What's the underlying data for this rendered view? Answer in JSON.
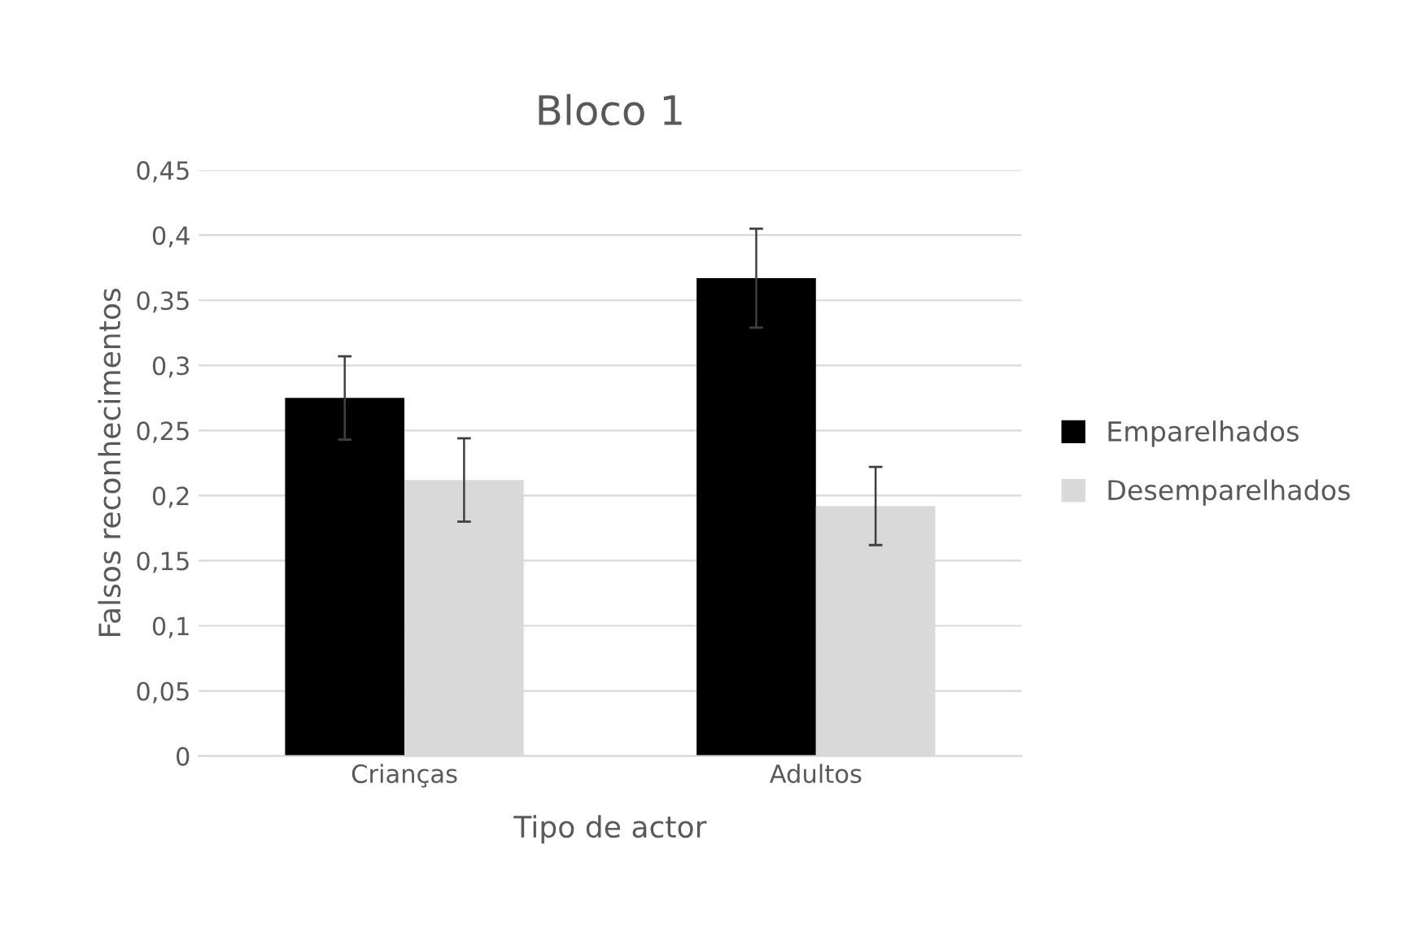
{
  "chart_data": {
    "type": "bar",
    "title": "Bloco 1",
    "xlabel": "Tipo de actor",
    "ylabel": "Falsos reconhecimentos",
    "categories": [
      "Crianças",
      "Adultos"
    ],
    "series": [
      {
        "name": "Emparelhados",
        "color": "#000000",
        "values": [
          0.275,
          0.367
        ],
        "errors": [
          0.032,
          0.038
        ]
      },
      {
        "name": "Desemparelhados",
        "color": "#d9d9d9",
        "values": [
          0.212,
          0.192
        ],
        "errors": [
          0.032,
          0.03
        ]
      }
    ],
    "ylim": [
      0,
      0.45
    ],
    "yticks": [
      0,
      {
        "value": 0.05,
        "label": "0,05"
      },
      {
        "value": 0.1,
        "label": "0,1"
      },
      {
        "value": 0.15,
        "label": "0,15"
      },
      {
        "value": 0.2,
        "label": "0,2"
      },
      {
        "value": 0.25,
        "label": "0,25"
      },
      {
        "value": 0.3,
        "label": "0,3"
      },
      {
        "value": 0.35,
        "label": "0,35"
      },
      {
        "value": 0.4,
        "label": "0,4"
      },
      {
        "value": 0.45,
        "label": "0,45"
      }
    ],
    "grid": "y",
    "legend": "right"
  }
}
